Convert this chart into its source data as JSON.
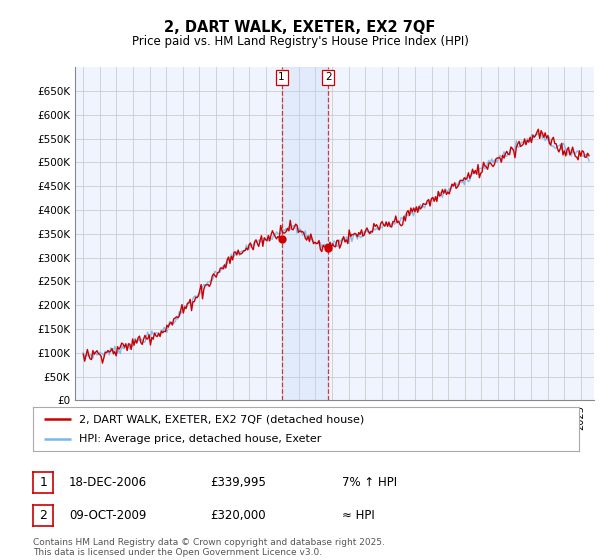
{
  "title": "2, DART WALK, EXETER, EX2 7QF",
  "subtitle": "Price paid vs. HM Land Registry's House Price Index (HPI)",
  "ylim": [
    0,
    700000
  ],
  "yticks": [
    0,
    50000,
    100000,
    150000,
    200000,
    250000,
    300000,
    350000,
    400000,
    450000,
    500000,
    550000,
    600000,
    650000
  ],
  "ytick_labels": [
    "£0",
    "£50K",
    "£100K",
    "£150K",
    "£200K",
    "£250K",
    "£300K",
    "£350K",
    "£400K",
    "£450K",
    "£500K",
    "£550K",
    "£600K",
    "£650K"
  ],
  "hpi_color": "#7ab8e8",
  "price_color": "#cc0000",
  "background_color": "#ffffff",
  "chart_bg_color": "#f0f4ff",
  "grid_color": "#cccccc",
  "purchase1_x": 2006.96,
  "purchase1_y": 339995,
  "purchase2_x": 2009.77,
  "purchase2_y": 320000,
  "legend_line1": "2, DART WALK, EXETER, EX2 7QF (detached house)",
  "legend_line2": "HPI: Average price, detached house, Exeter",
  "table_row1": [
    "1",
    "18-DEC-2006",
    "£339,995",
    "7% ↑ HPI"
  ],
  "table_row2": [
    "2",
    "09-OCT-2009",
    "£320,000",
    "≈ HPI"
  ],
  "footer": "Contains HM Land Registry data © Crown copyright and database right 2025.\nThis data is licensed under the Open Government Licence v3.0.",
  "shade_x_start": 2006.96,
  "shade_x_end": 2009.77,
  "xlim_left": 1994.5,
  "xlim_right": 2025.8
}
